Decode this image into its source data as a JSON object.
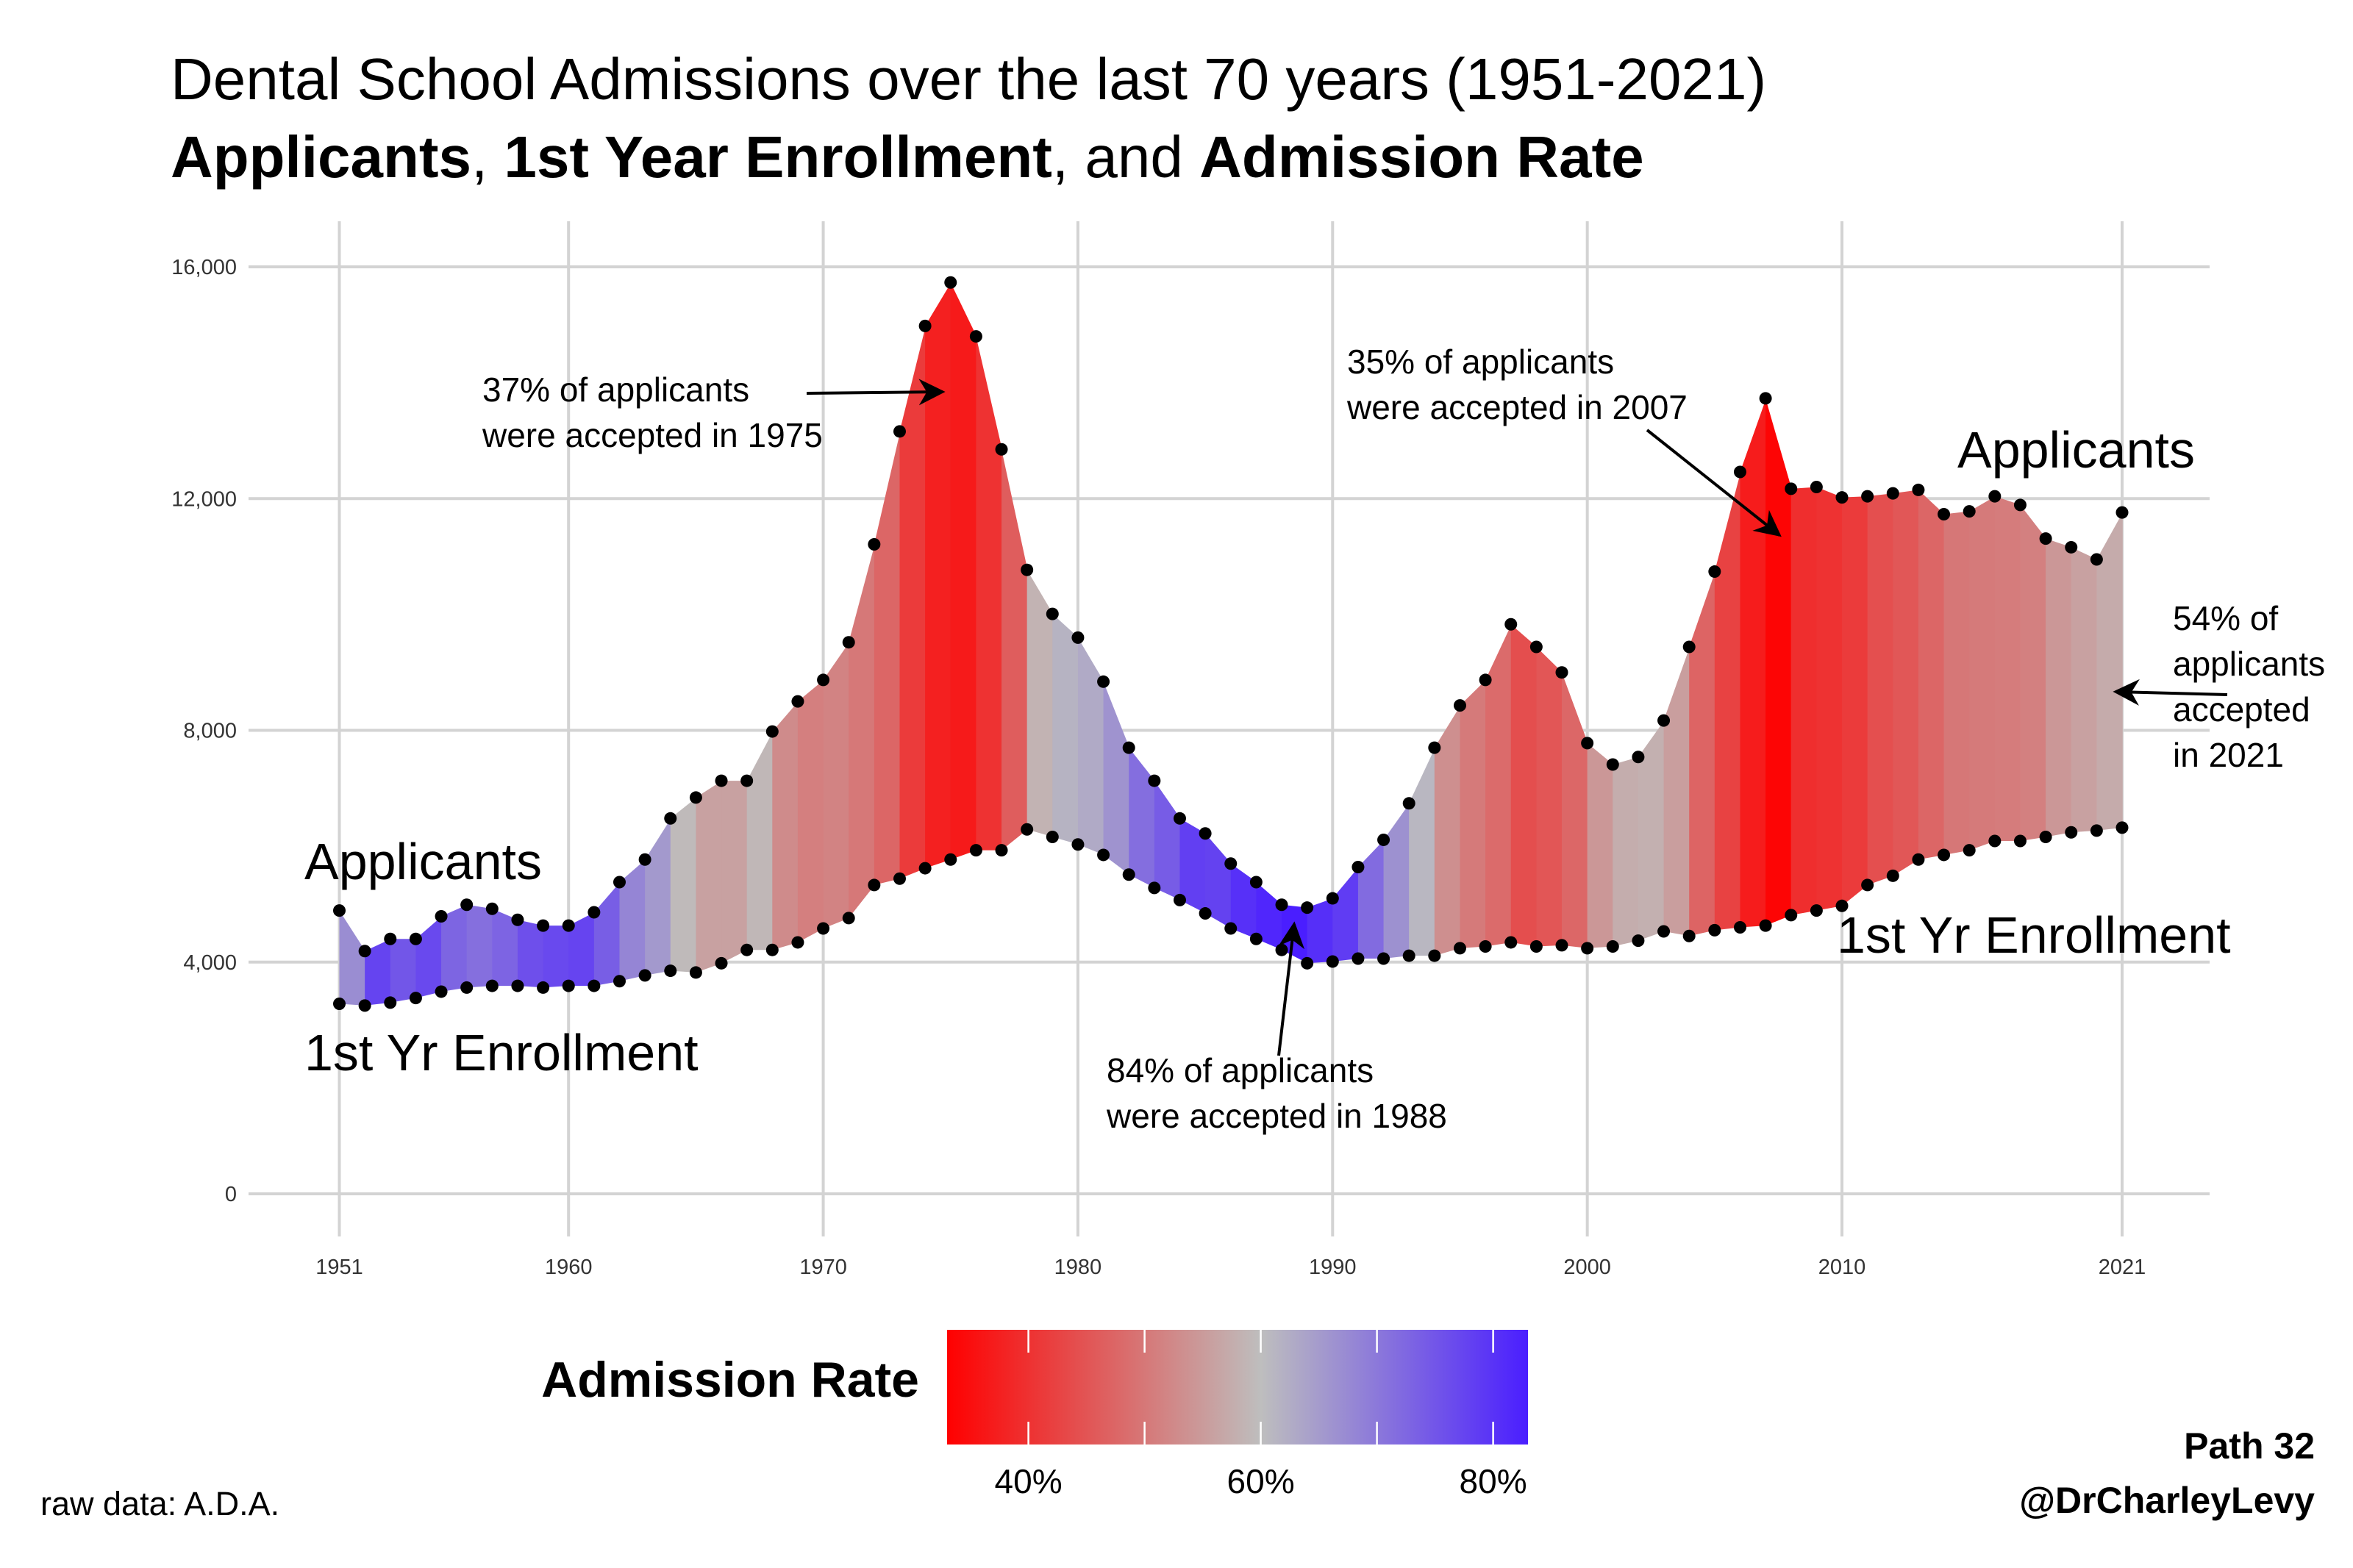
{
  "title": {
    "line1": "Dental School Admissions over the last 70 years (1951-2021)",
    "line2_parts": [
      {
        "text": "Applicants",
        "bold": true
      },
      {
        "text": ", ",
        "bold": false
      },
      {
        "text": "1st Year Enrollment",
        "bold": true
      },
      {
        "text": ", and ",
        "bold": false
      },
      {
        "text": "Admission Rate",
        "bold": true
      }
    ]
  },
  "chart_data": {
    "type": "area",
    "title": "Dental School Admissions over the last 70 years (1951-2021)",
    "subtitle": "Applicants, 1st Year Enrollment, and Admission Rate",
    "xlabel": "",
    "ylabel": "",
    "xlim": [
      1951,
      2021
    ],
    "ylim": [
      0,
      16000
    ],
    "x_ticks": [
      1951,
      1960,
      1970,
      1980,
      1990,
      2000,
      2010,
      2021
    ],
    "y_ticks": [
      0,
      4000,
      8000,
      12000,
      16000
    ],
    "y_tick_labels": [
      "0",
      "4,000",
      "8,000",
      "12,000",
      "16,000"
    ],
    "grid": true,
    "fill": "ribbon between series colored by admission rate (1st Yr Enrollment / Applicants)",
    "x": [
      1951,
      1952,
      1953,
      1954,
      1955,
      1956,
      1957,
      1958,
      1959,
      1960,
      1961,
      1962,
      1963,
      1964,
      1965,
      1966,
      1967,
      1968,
      1969,
      1970,
      1971,
      1972,
      1973,
      1974,
      1975,
      1976,
      1977,
      1978,
      1979,
      1980,
      1981,
      1982,
      1983,
      1984,
      1985,
      1986,
      1987,
      1988,
      1989,
      1990,
      1991,
      1992,
      1993,
      1994,
      1995,
      1996,
      1997,
      1998,
      1999,
      2000,
      2001,
      2002,
      2003,
      2004,
      2005,
      2006,
      2007,
      2008,
      2009,
      2010,
      2011,
      2012,
      2013,
      2014,
      2015,
      2016,
      2017,
      2018,
      2019,
      2020,
      2021
    ],
    "series": [
      {
        "name": "Applicants",
        "values": [
          4890,
          4190,
          4400,
          4400,
          4790,
          4990,
          4920,
          4730,
          4630,
          4630,
          4860,
          5380,
          5770,
          6480,
          6840,
          7130,
          7130,
          7980,
          8500,
          8870,
          9520,
          11210,
          13160,
          14980,
          15730,
          14800,
          12850,
          10770,
          10010,
          9600,
          8840,
          7700,
          7130,
          6480,
          6220,
          5700,
          5380,
          4990,
          4940,
          5100,
          5640,
          6110,
          6740,
          7700,
          8430,
          8870,
          9830,
          9440,
          9000,
          7780,
          7410,
          7540,
          8170,
          9440,
          10740,
          12460,
          13730,
          12170,
          12200,
          12020,
          12040,
          12090,
          12150,
          11730,
          11780,
          12040,
          11890,
          11310,
          11160,
          10950,
          11760
        ]
      },
      {
        "name": "1st Yr Enrollment",
        "values": [
          3280,
          3250,
          3300,
          3380,
          3490,
          3560,
          3590,
          3590,
          3560,
          3590,
          3590,
          3670,
          3770,
          3850,
          3820,
          3980,
          4210,
          4210,
          4340,
          4580,
          4760,
          5330,
          5440,
          5620,
          5770,
          5930,
          5930,
          6290,
          6160,
          6030,
          5850,
          5510,
          5280,
          5070,
          4840,
          4580,
          4400,
          4210,
          3980,
          4010,
          4060,
          4060,
          4110,
          4110,
          4240,
          4270,
          4340,
          4270,
          4290,
          4240,
          4270,
          4370,
          4530,
          4450,
          4550,
          4600,
          4630,
          4810,
          4890,
          4970,
          5330,
          5490,
          5770,
          5850,
          5930,
          6090,
          6090,
          6160,
          6240,
          6270,
          6320
        ]
      }
    ],
    "series_labels": {
      "applicants_left": "Applicants",
      "enrollment_left": "1st Yr Enrollment",
      "applicants_right": "Applicants",
      "enrollment_right": "1st Yr Enrollment"
    },
    "annotations": [
      {
        "lines": [
          "37% of applicants",
          "were accepted in 1975"
        ],
        "year": 1975
      },
      {
        "lines": [
          "35% of applicants",
          "were accepted in 2007"
        ],
        "year": 2007
      },
      {
        "lines": [
          "84% of applicants",
          "were accepted in 1988"
        ],
        "year": 1988
      },
      {
        "lines": [
          "54% of",
          "applicants",
          "accepted",
          "in 2021"
        ],
        "year": 2021
      }
    ],
    "colorbar": {
      "title": "Admission Rate",
      "tick_labels": [
        "40%",
        "60%",
        "80%"
      ],
      "tick_values": [
        40,
        50,
        60,
        70,
        80
      ],
      "range": [
        33,
        83
      ],
      "colors": {
        "low": "#ff0000",
        "mid": "#bebebe",
        "high": "#4a1eff"
      },
      "mid_value": 60
    },
    "colors": {
      "grid": "#d3d3d3",
      "points": "#000000"
    }
  },
  "footer": {
    "credit_line1": "Path 32",
    "credit_line2": "@DrCharleyLevy",
    "source": "raw data: A.D.A."
  }
}
